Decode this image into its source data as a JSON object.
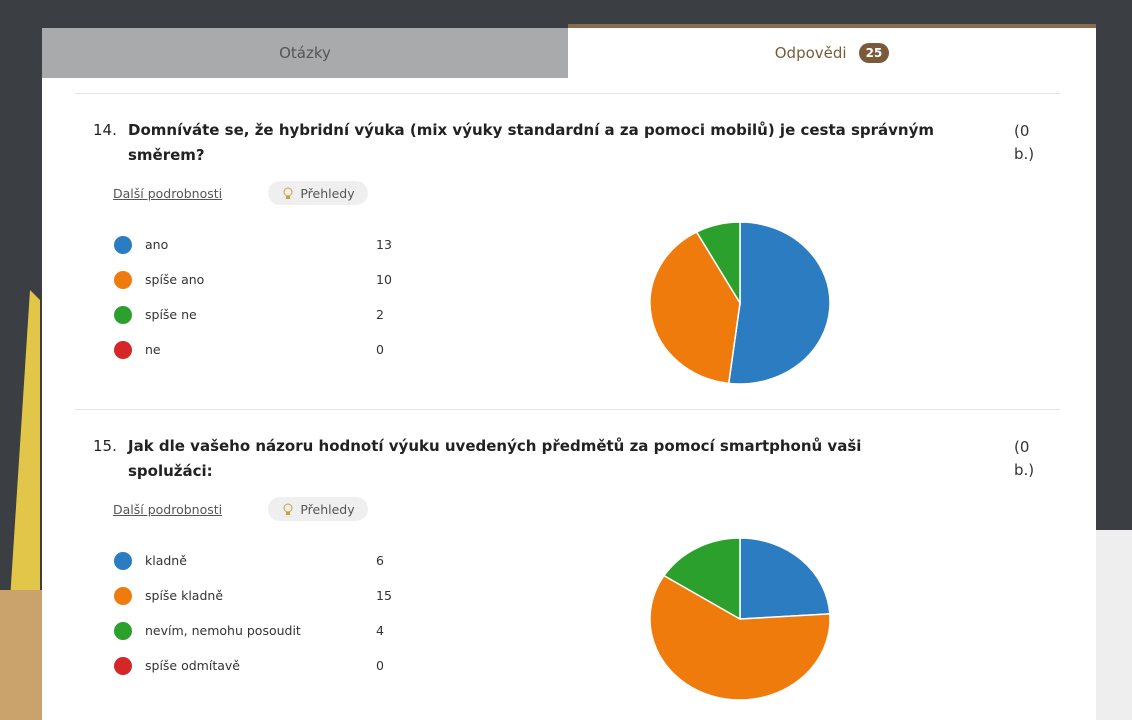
{
  "tabs": {
    "questions": "Otázky",
    "responses": "Odpovědi",
    "responses_count": "25"
  },
  "questions": [
    {
      "number": "14.",
      "title": "Domníváte se, že hybridní výuka (mix výuky standardní a za pomoci mobilů) je cesta správným směrem?",
      "points": "(0 b.)",
      "details_link": "Další podrobnosti",
      "insights_button": "Přehledy",
      "chart_data": {
        "type": "pie",
        "options": [
          {
            "label": "ano",
            "count": 13,
            "color": "#2b7cc0"
          },
          {
            "label": "spíše ano",
            "count": 10,
            "color": "#ee7b0c"
          },
          {
            "label": "spíše ne",
            "count": 2,
            "color": "#2ca02c"
          },
          {
            "label": "ne",
            "count": 0,
            "color": "#d62728"
          }
        ]
      }
    },
    {
      "number": "15.",
      "title": "Jak dle vašeho názoru hodnotí výuku uvedených předmětů za pomocí smartphonů vaši spolužáci:",
      "points": "(0 b.)",
      "details_link": "Další podrobnosti",
      "insights_button": "Přehledy",
      "chart_data": {
        "type": "pie",
        "options": [
          {
            "label": "kladně",
            "count": 6,
            "color": "#2b7cc0"
          },
          {
            "label": "spíše kladně",
            "count": 15,
            "color": "#ee7b0c"
          },
          {
            "label": "nevím, nemohu posoudit",
            "count": 4,
            "color": "#2ca02c"
          },
          {
            "label": "spíše odmítavě",
            "count": 0,
            "color": "#d62728"
          }
        ]
      }
    }
  ]
}
